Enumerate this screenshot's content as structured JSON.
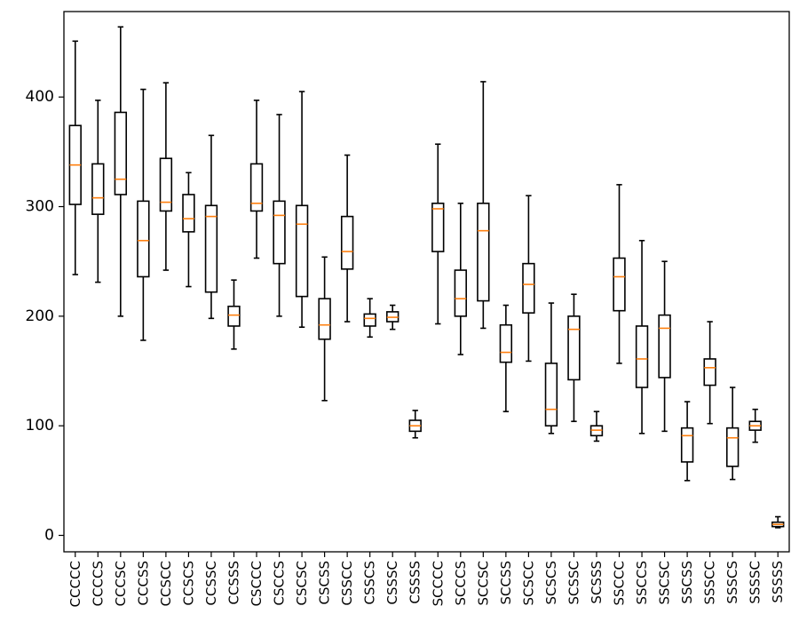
{
  "chart_data": {
    "type": "boxplot",
    "title": "",
    "xlabel": "",
    "ylabel": "",
    "ylim": [
      -15,
      478
    ],
    "y_ticks": [
      0,
      100,
      200,
      300,
      400
    ],
    "grid": false,
    "legend": "none",
    "colors": {
      "box": "#000000",
      "median": "#ff7f0e",
      "background": "#ffffff"
    },
    "boxes": [
      {
        "label": "CCCCC",
        "whislo": 238,
        "q1": 302,
        "med": 338,
        "q3": 374,
        "whishi": 451
      },
      {
        "label": "CCCCS",
        "whislo": 231,
        "q1": 293,
        "med": 308,
        "q3": 339,
        "whishi": 397
      },
      {
        "label": "CCCSC",
        "whislo": 200,
        "q1": 311,
        "med": 325,
        "q3": 386,
        "whishi": 464
      },
      {
        "label": "CCCSS",
        "whislo": 178,
        "q1": 236,
        "med": 269,
        "q3": 305,
        "whishi": 407
      },
      {
        "label": "CCSCC",
        "whislo": 242,
        "q1": 296,
        "med": 304,
        "q3": 344,
        "whishi": 413
      },
      {
        "label": "CCSCS",
        "whislo": 227,
        "q1": 277,
        "med": 289,
        "q3": 311,
        "whishi": 331
      },
      {
        "label": "CCSSC",
        "whislo": 198,
        "q1": 222,
        "med": 291,
        "q3": 301,
        "whishi": 365
      },
      {
        "label": "CCSSS",
        "whislo": 170,
        "q1": 191,
        "med": 201,
        "q3": 209,
        "whishi": 233
      },
      {
        "label": "CSCCC",
        "whislo": 253,
        "q1": 296,
        "med": 303,
        "q3": 339,
        "whishi": 397
      },
      {
        "label": "CSCCS",
        "whislo": 200,
        "q1": 248,
        "med": 292,
        "q3": 305,
        "whishi": 384
      },
      {
        "label": "CSCSC",
        "whislo": 190,
        "q1": 218,
        "med": 284,
        "q3": 301,
        "whishi": 405
      },
      {
        "label": "CSCSS",
        "whislo": 123,
        "q1": 179,
        "med": 192,
        "q3": 216,
        "whishi": 254
      },
      {
        "label": "CSSCC",
        "whislo": 195,
        "q1": 243,
        "med": 259,
        "q3": 291,
        "whishi": 347
      },
      {
        "label": "CSSCS",
        "whislo": 181,
        "q1": 191,
        "med": 198,
        "q3": 202,
        "whishi": 216
      },
      {
        "label": "CSSSC",
        "whislo": 188,
        "q1": 195,
        "med": 199,
        "q3": 204,
        "whishi": 210
      },
      {
        "label": "CSSSS",
        "whislo": 89,
        "q1": 95,
        "med": 100,
        "q3": 105,
        "whishi": 114
      },
      {
        "label": "SCCCC",
        "whislo": 193,
        "q1": 259,
        "med": 298,
        "q3": 303,
        "whishi": 357
      },
      {
        "label": "SCCCS",
        "whislo": 165,
        "q1": 200,
        "med": 216,
        "q3": 242,
        "whishi": 303
      },
      {
        "label": "SCCSC",
        "whislo": 189,
        "q1": 214,
        "med": 278,
        "q3": 303,
        "whishi": 414
      },
      {
        "label": "SCCSS",
        "whislo": 113,
        "q1": 158,
        "med": 167,
        "q3": 192,
        "whishi": 210
      },
      {
        "label": "SCSCC",
        "whislo": 159,
        "q1": 203,
        "med": 229,
        "q3": 248,
        "whishi": 310
      },
      {
        "label": "SCSCS",
        "whislo": 93,
        "q1": 100,
        "med": 115,
        "q3": 157,
        "whishi": 212
      },
      {
        "label": "SCSSC",
        "whislo": 104,
        "q1": 142,
        "med": 188,
        "q3": 200,
        "whishi": 220
      },
      {
        "label": "SCSSS",
        "whislo": 86,
        "q1": 91,
        "med": 96,
        "q3": 100,
        "whishi": 113
      },
      {
        "label": "SSCCC",
        "whislo": 157,
        "q1": 205,
        "med": 236,
        "q3": 253,
        "whishi": 320
      },
      {
        "label": "SSCCS",
        "whislo": 93,
        "q1": 135,
        "med": 161,
        "q3": 191,
        "whishi": 269
      },
      {
        "label": "SSCSC",
        "whislo": 95,
        "q1": 144,
        "med": 189,
        "q3": 201,
        "whishi": 250
      },
      {
        "label": "SSCSS",
        "whislo": 50,
        "q1": 67,
        "med": 91,
        "q3": 98,
        "whishi": 122
      },
      {
        "label": "SSSCC",
        "whislo": 102,
        "q1": 137,
        "med": 153,
        "q3": 161,
        "whishi": 195
      },
      {
        "label": "SSSCS",
        "whislo": 51,
        "q1": 63,
        "med": 89,
        "q3": 98,
        "whishi": 135
      },
      {
        "label": "SSSSC",
        "whislo": 85,
        "q1": 96,
        "med": 100,
        "q3": 104,
        "whishi": 115
      },
      {
        "label": "SSSSS",
        "whislo": 7,
        "q1": 8,
        "med": 10,
        "q3": 12,
        "whishi": 17
      }
    ]
  }
}
